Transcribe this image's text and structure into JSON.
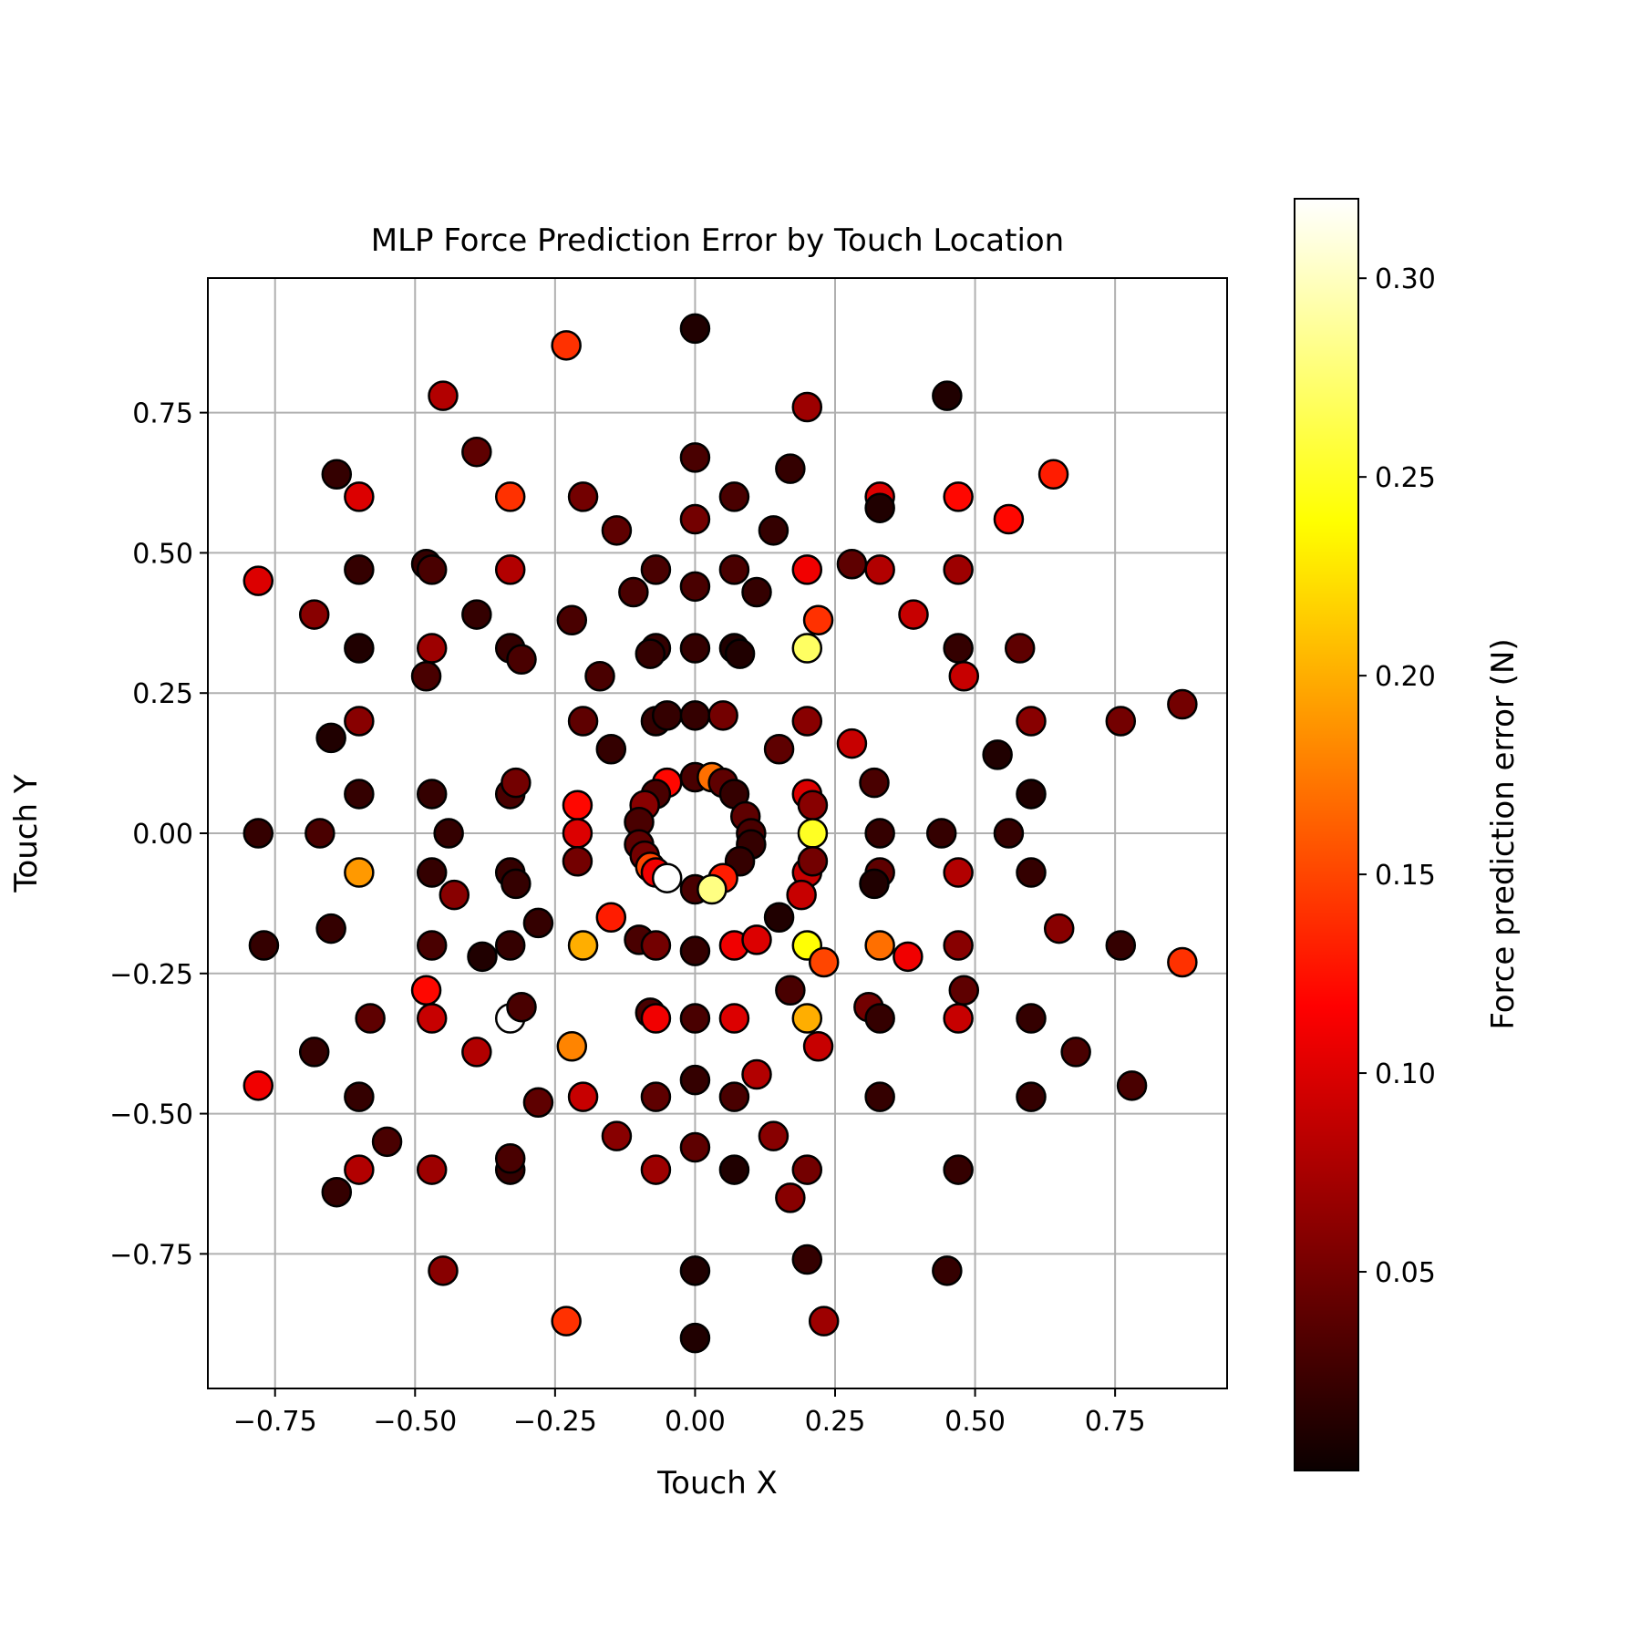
{
  "chart_data": {
    "type": "scatter",
    "title": "MLP Force Prediction Error by Touch Location",
    "xlabel": "Touch X",
    "ylabel": "Touch Y",
    "xlim": [
      -0.87,
      0.95
    ],
    "ylim": [
      -0.99,
      0.99
    ],
    "x_ticks": [
      -0.75,
      -0.5,
      -0.25,
      0.0,
      0.25,
      0.5,
      0.75
    ],
    "y_ticks": [
      -0.75,
      -0.5,
      -0.25,
      0.0,
      0.25,
      0.5,
      0.75
    ],
    "x_tick_labels": [
      "−0.75",
      "−0.50",
      "−0.25",
      "0.00",
      "0.25",
      "0.50",
      "0.75"
    ],
    "y_tick_labels": [
      "−0.75",
      "−0.50",
      "−0.25",
      "0.00",
      "0.25",
      "0.50",
      "0.75"
    ],
    "grid": true,
    "colormap": "hot",
    "colorbar": {
      "label": "Force prediction error (N)",
      "range": [
        0.0,
        0.32
      ],
      "ticks": [
        0.05,
        0.1,
        0.15,
        0.2,
        0.25,
        0.3
      ],
      "tick_labels": [
        "0.05",
        "0.10",
        "0.15",
        "0.20",
        "0.25",
        "0.30"
      ]
    },
    "marker_edge_color": "#000000",
    "points": [
      {
        "x": 0.0,
        "y": 0.9,
        "e": 0.01
      },
      {
        "x": -0.23,
        "y": 0.87,
        "e": 0.14
      },
      {
        "x": -0.45,
        "y": 0.78,
        "e": 0.08
      },
      {
        "x": 0.45,
        "y": 0.78,
        "e": 0.01
      },
      {
        "x": 0.2,
        "y": 0.76,
        "e": 0.07
      },
      {
        "x": -0.39,
        "y": 0.68,
        "e": 0.04
      },
      {
        "x": 0.0,
        "y": 0.67,
        "e": 0.03
      },
      {
        "x": -0.64,
        "y": 0.64,
        "e": 0.02
      },
      {
        "x": 0.64,
        "y": 0.64,
        "e": 0.13
      },
      {
        "x": 0.17,
        "y": 0.65,
        "e": 0.02
      },
      {
        "x": -0.6,
        "y": 0.6,
        "e": 0.1
      },
      {
        "x": -0.33,
        "y": 0.6,
        "e": 0.14
      },
      {
        "x": -0.2,
        "y": 0.6,
        "e": 0.05
      },
      {
        "x": 0.07,
        "y": 0.6,
        "e": 0.03
      },
      {
        "x": 0.33,
        "y": 0.6,
        "e": 0.1
      },
      {
        "x": 0.47,
        "y": 0.6,
        "e": 0.12
      },
      {
        "x": 0.33,
        "y": 0.58,
        "e": 0.01
      },
      {
        "x": 0.0,
        "y": 0.56,
        "e": 0.05
      },
      {
        "x": 0.56,
        "y": 0.56,
        "e": 0.12
      },
      {
        "x": -0.14,
        "y": 0.54,
        "e": 0.04
      },
      {
        "x": 0.14,
        "y": 0.54,
        "e": 0.02
      },
      {
        "x": 0.28,
        "y": 0.48,
        "e": 0.04
      },
      {
        "x": -0.78,
        "y": 0.45,
        "e": 0.1
      },
      {
        "x": -0.6,
        "y": 0.47,
        "e": 0.02
      },
      {
        "x": -0.48,
        "y": 0.48,
        "e": 0.02
      },
      {
        "x": -0.47,
        "y": 0.47,
        "e": 0.03
      },
      {
        "x": -0.33,
        "y": 0.47,
        "e": 0.08
      },
      {
        "x": -0.07,
        "y": 0.47,
        "e": 0.03
      },
      {
        "x": 0.07,
        "y": 0.47,
        "e": 0.03
      },
      {
        "x": 0.2,
        "y": 0.47,
        "e": 0.11
      },
      {
        "x": 0.33,
        "y": 0.47,
        "e": 0.08
      },
      {
        "x": 0.47,
        "y": 0.47,
        "e": 0.07
      },
      {
        "x": 0.0,
        "y": 0.44,
        "e": 0.03
      },
      {
        "x": -0.11,
        "y": 0.43,
        "e": 0.03
      },
      {
        "x": 0.11,
        "y": 0.43,
        "e": 0.02
      },
      {
        "x": -0.68,
        "y": 0.39,
        "e": 0.06
      },
      {
        "x": -0.39,
        "y": 0.39,
        "e": 0.02
      },
      {
        "x": -0.22,
        "y": 0.38,
        "e": 0.03
      },
      {
        "x": 0.22,
        "y": 0.38,
        "e": 0.14
      },
      {
        "x": 0.39,
        "y": 0.39,
        "e": 0.09
      },
      {
        "x": -0.6,
        "y": 0.33,
        "e": 0.01
      },
      {
        "x": -0.47,
        "y": 0.33,
        "e": 0.07
      },
      {
        "x": -0.33,
        "y": 0.33,
        "e": 0.02
      },
      {
        "x": -0.31,
        "y": 0.31,
        "e": 0.03
      },
      {
        "x": -0.07,
        "y": 0.33,
        "e": 0.02
      },
      {
        "x": -0.08,
        "y": 0.32,
        "e": 0.02
      },
      {
        "x": 0.0,
        "y": 0.33,
        "e": 0.02
      },
      {
        "x": 0.07,
        "y": 0.33,
        "e": 0.01
      },
      {
        "x": 0.08,
        "y": 0.32,
        "e": 0.01
      },
      {
        "x": 0.2,
        "y": 0.33,
        "e": 0.27
      },
      {
        "x": 0.47,
        "y": 0.33,
        "e": 0.02
      },
      {
        "x": 0.58,
        "y": 0.33,
        "e": 0.04
      },
      {
        "x": -0.48,
        "y": 0.28,
        "e": 0.03
      },
      {
        "x": -0.17,
        "y": 0.28,
        "e": 0.03
      },
      {
        "x": 0.48,
        "y": 0.28,
        "e": 0.09
      },
      {
        "x": -0.6,
        "y": 0.2,
        "e": 0.06
      },
      {
        "x": -0.2,
        "y": 0.2,
        "e": 0.04
      },
      {
        "x": -0.07,
        "y": 0.2,
        "e": 0.02
      },
      {
        "x": -0.05,
        "y": 0.21,
        "e": 0.02
      },
      {
        "x": 0.0,
        "y": 0.21,
        "e": 0.02
      },
      {
        "x": 0.05,
        "y": 0.21,
        "e": 0.05
      },
      {
        "x": 0.2,
        "y": 0.2,
        "e": 0.06
      },
      {
        "x": 0.6,
        "y": 0.2,
        "e": 0.06
      },
      {
        "x": 0.76,
        "y": 0.2,
        "e": 0.05
      },
      {
        "x": 0.87,
        "y": 0.23,
        "e": 0.05
      },
      {
        "x": -0.65,
        "y": 0.17,
        "e": 0.01
      },
      {
        "x": -0.15,
        "y": 0.15,
        "e": 0.02
      },
      {
        "x": 0.15,
        "y": 0.15,
        "e": 0.04
      },
      {
        "x": 0.28,
        "y": 0.16,
        "e": 0.09
      },
      {
        "x": 0.54,
        "y": 0.14,
        "e": 0.01
      },
      {
        "x": -0.6,
        "y": 0.07,
        "e": 0.02
      },
      {
        "x": -0.47,
        "y": 0.07,
        "e": 0.02
      },
      {
        "x": -0.33,
        "y": 0.07,
        "e": 0.03
      },
      {
        "x": -0.32,
        "y": 0.09,
        "e": 0.05
      },
      {
        "x": -0.21,
        "y": 0.05,
        "e": 0.12
      },
      {
        "x": 0.2,
        "y": 0.07,
        "e": 0.1
      },
      {
        "x": 0.21,
        "y": 0.05,
        "e": 0.06
      },
      {
        "x": 0.32,
        "y": 0.09,
        "e": 0.03
      },
      {
        "x": 0.6,
        "y": 0.07,
        "e": 0.01
      },
      {
        "x": -0.78,
        "y": 0.0,
        "e": 0.02
      },
      {
        "x": -0.67,
        "y": 0.0,
        "e": 0.03
      },
      {
        "x": -0.44,
        "y": 0.0,
        "e": 0.02
      },
      {
        "x": -0.21,
        "y": 0.0,
        "e": 0.1
      },
      {
        "x": 0.21,
        "y": 0.0,
        "e": 0.25
      },
      {
        "x": 0.33,
        "y": 0.0,
        "e": 0.02
      },
      {
        "x": 0.44,
        "y": 0.0,
        "e": 0.02
      },
      {
        "x": 0.56,
        "y": 0.0,
        "e": 0.02
      },
      {
        "x": 0.0,
        "y": 0.1,
        "e": 0.03
      },
      {
        "x": 0.03,
        "y": 0.1,
        "e": 0.17
      },
      {
        "x": -0.05,
        "y": 0.09,
        "e": 0.12
      },
      {
        "x": 0.05,
        "y": 0.09,
        "e": 0.04
      },
      {
        "x": -0.07,
        "y": 0.07,
        "e": 0.03
      },
      {
        "x": 0.07,
        "y": 0.07,
        "e": 0.02
      },
      {
        "x": -0.09,
        "y": 0.05,
        "e": 0.06
      },
      {
        "x": 0.09,
        "y": 0.03,
        "e": 0.04
      },
      {
        "x": -0.1,
        "y": 0.02,
        "e": 0.03
      },
      {
        "x": 0.1,
        "y": 0.0,
        "e": 0.03
      },
      {
        "x": -0.1,
        "y": -0.02,
        "e": 0.04
      },
      {
        "x": 0.1,
        "y": -0.02,
        "e": 0.02
      },
      {
        "x": -0.09,
        "y": -0.04,
        "e": 0.05
      },
      {
        "x": 0.08,
        "y": -0.05,
        "e": 0.02
      },
      {
        "x": -0.08,
        "y": -0.06,
        "e": 0.15
      },
      {
        "x": -0.07,
        "y": -0.07,
        "e": 0.11
      },
      {
        "x": -0.05,
        "y": -0.08,
        "e": 0.32
      },
      {
        "x": 0.05,
        "y": -0.08,
        "e": 0.13
      },
      {
        "x": 0.0,
        "y": -0.1,
        "e": 0.03
      },
      {
        "x": 0.03,
        "y": -0.1,
        "e": 0.28
      },
      {
        "x": -0.6,
        "y": -0.07,
        "e": 0.19
      },
      {
        "x": -0.47,
        "y": -0.07,
        "e": 0.02
      },
      {
        "x": -0.33,
        "y": -0.07,
        "e": 0.02
      },
      {
        "x": -0.32,
        "y": -0.09,
        "e": 0.02
      },
      {
        "x": -0.21,
        "y": -0.05,
        "e": 0.05
      },
      {
        "x": 0.2,
        "y": -0.07,
        "e": 0.09
      },
      {
        "x": 0.21,
        "y": -0.05,
        "e": 0.05
      },
      {
        "x": 0.33,
        "y": -0.07,
        "e": 0.04
      },
      {
        "x": 0.32,
        "y": -0.09,
        "e": 0.01
      },
      {
        "x": 0.47,
        "y": -0.07,
        "e": 0.08
      },
      {
        "x": 0.6,
        "y": -0.07,
        "e": 0.02
      },
      {
        "x": -0.43,
        "y": -0.11,
        "e": 0.06
      },
      {
        "x": 0.19,
        "y": -0.11,
        "e": 0.09
      },
      {
        "x": -0.15,
        "y": -0.15,
        "e": 0.13
      },
      {
        "x": 0.15,
        "y": -0.15,
        "e": 0.01
      },
      {
        "x": -0.77,
        "y": -0.2,
        "e": 0.02
      },
      {
        "x": -0.65,
        "y": -0.17,
        "e": 0.02
      },
      {
        "x": -0.28,
        "y": -0.16,
        "e": 0.02
      },
      {
        "x": 0.65,
        "y": -0.17,
        "e": 0.06
      },
      {
        "x": -0.47,
        "y": -0.2,
        "e": 0.03
      },
      {
        "x": -0.33,
        "y": -0.2,
        "e": 0.02
      },
      {
        "x": -0.38,
        "y": -0.22,
        "e": 0.01
      },
      {
        "x": -0.2,
        "y": -0.2,
        "e": 0.2
      },
      {
        "x": -0.1,
        "y": -0.19,
        "e": 0.03
      },
      {
        "x": -0.07,
        "y": -0.2,
        "e": 0.05
      },
      {
        "x": 0.0,
        "y": -0.21,
        "e": 0.02
      },
      {
        "x": 0.07,
        "y": -0.2,
        "e": 0.11
      },
      {
        "x": 0.11,
        "y": -0.19,
        "e": 0.1
      },
      {
        "x": 0.2,
        "y": -0.2,
        "e": 0.24
      },
      {
        "x": 0.23,
        "y": -0.23,
        "e": 0.15
      },
      {
        "x": 0.33,
        "y": -0.2,
        "e": 0.17
      },
      {
        "x": 0.38,
        "y": -0.22,
        "e": 0.11
      },
      {
        "x": 0.47,
        "y": -0.2,
        "e": 0.06
      },
      {
        "x": 0.76,
        "y": -0.2,
        "e": 0.02
      },
      {
        "x": 0.87,
        "y": -0.23,
        "e": 0.14
      },
      {
        "x": -0.48,
        "y": -0.28,
        "e": 0.12
      },
      {
        "x": 0.17,
        "y": -0.28,
        "e": 0.03
      },
      {
        "x": 0.48,
        "y": -0.28,
        "e": 0.04
      },
      {
        "x": -0.58,
        "y": -0.33,
        "e": 0.04
      },
      {
        "x": -0.47,
        "y": -0.33,
        "e": 0.09
      },
      {
        "x": -0.33,
        "y": -0.33,
        "e": 0.32
      },
      {
        "x": -0.31,
        "y": -0.31,
        "e": 0.03
      },
      {
        "x": -0.08,
        "y": -0.32,
        "e": 0.03
      },
      {
        "x": -0.07,
        "y": -0.33,
        "e": 0.11
      },
      {
        "x": 0.0,
        "y": -0.33,
        "e": 0.03
      },
      {
        "x": 0.07,
        "y": -0.33,
        "e": 0.1
      },
      {
        "x": 0.2,
        "y": -0.33,
        "e": 0.2
      },
      {
        "x": 0.31,
        "y": -0.31,
        "e": 0.05
      },
      {
        "x": 0.33,
        "y": -0.33,
        "e": 0.02
      },
      {
        "x": 0.47,
        "y": -0.33,
        "e": 0.09
      },
      {
        "x": 0.6,
        "y": -0.33,
        "e": 0.02
      },
      {
        "x": -0.68,
        "y": -0.39,
        "e": 0.02
      },
      {
        "x": -0.39,
        "y": -0.39,
        "e": 0.08
      },
      {
        "x": -0.22,
        "y": -0.38,
        "e": 0.18
      },
      {
        "x": 0.22,
        "y": -0.38,
        "e": 0.09
      },
      {
        "x": 0.68,
        "y": -0.39,
        "e": 0.03
      },
      {
        "x": -0.78,
        "y": -0.45,
        "e": 0.11
      },
      {
        "x": -0.6,
        "y": -0.47,
        "e": 0.02
      },
      {
        "x": -0.28,
        "y": -0.48,
        "e": 0.04
      },
      {
        "x": -0.2,
        "y": -0.47,
        "e": 0.09
      },
      {
        "x": -0.07,
        "y": -0.47,
        "e": 0.04
      },
      {
        "x": 0.0,
        "y": -0.44,
        "e": 0.02
      },
      {
        "x": 0.07,
        "y": -0.47,
        "e": 0.03
      },
      {
        "x": 0.11,
        "y": -0.43,
        "e": 0.08
      },
      {
        "x": 0.33,
        "y": -0.47,
        "e": 0.02
      },
      {
        "x": 0.6,
        "y": -0.47,
        "e": 0.02
      },
      {
        "x": 0.78,
        "y": -0.45,
        "e": 0.03
      },
      {
        "x": -0.55,
        "y": -0.55,
        "e": 0.03
      },
      {
        "x": -0.14,
        "y": -0.54,
        "e": 0.06
      },
      {
        "x": 0.0,
        "y": -0.56,
        "e": 0.04
      },
      {
        "x": 0.14,
        "y": -0.54,
        "e": 0.06
      },
      {
        "x": -0.6,
        "y": -0.6,
        "e": 0.08
      },
      {
        "x": -0.47,
        "y": -0.6,
        "e": 0.07
      },
      {
        "x": -0.33,
        "y": -0.6,
        "e": 0.02
      },
      {
        "x": -0.33,
        "y": -0.58,
        "e": 0.03
      },
      {
        "x": -0.07,
        "y": -0.6,
        "e": 0.07
      },
      {
        "x": 0.07,
        "y": -0.6,
        "e": 0.01
      },
      {
        "x": 0.2,
        "y": -0.6,
        "e": 0.05
      },
      {
        "x": 0.47,
        "y": -0.6,
        "e": 0.02
      },
      {
        "x": -0.64,
        "y": -0.64,
        "e": 0.02
      },
      {
        "x": 0.17,
        "y": -0.65,
        "e": 0.06
      },
      {
        "x": 0.2,
        "y": -0.76,
        "e": 0.02
      },
      {
        "x": 0.0,
        "y": -0.78,
        "e": 0.01
      },
      {
        "x": -0.45,
        "y": -0.78,
        "e": 0.06
      },
      {
        "x": 0.45,
        "y": -0.78,
        "e": 0.02
      },
      {
        "x": -0.23,
        "y": -0.87,
        "e": 0.14
      },
      {
        "x": 0.23,
        "y": -0.87,
        "e": 0.07
      },
      {
        "x": 0.0,
        "y": -0.9,
        "e": 0.01
      }
    ]
  }
}
